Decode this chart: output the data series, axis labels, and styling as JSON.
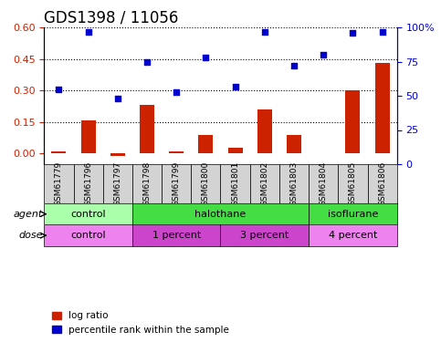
{
  "title": "GDS1398 / 11056",
  "samples": [
    "GSM61779",
    "GSM61796",
    "GSM61797",
    "GSM61798",
    "GSM61799",
    "GSM61800",
    "GSM61801",
    "GSM61802",
    "GSM61803",
    "GSM61804",
    "GSM61805",
    "GSM61806"
  ],
  "log_ratio": [
    0.01,
    0.16,
    -0.01,
    0.23,
    0.01,
    0.09,
    0.03,
    0.21,
    0.09,
    0.0,
    0.3,
    0.43
  ],
  "percentile_rank": [
    55,
    97,
    48,
    75,
    53,
    78,
    57,
    97,
    72,
    80,
    96,
    97
  ],
  "agent_groups": [
    {
      "label": "control",
      "start": 0,
      "end": 3,
      "color": "#90EE90"
    },
    {
      "label": "halothane",
      "start": 3,
      "end": 9,
      "color": "#00CC44"
    },
    {
      "label": "isoflurane",
      "start": 9,
      "end": 12,
      "color": "#00CC44"
    }
  ],
  "dose_groups": [
    {
      "label": "control",
      "start": 0,
      "end": 3,
      "color": "#EE82EE"
    },
    {
      "label": "1 percent",
      "start": 3,
      "end": 6,
      "color": "#DA70D6"
    },
    {
      "label": "3 percent",
      "start": 6,
      "end": 9,
      "color": "#DA70D6"
    },
    {
      "label": "4 percent",
      "start": 9,
      "end": 12,
      "color": "#EE82EE"
    }
  ],
  "left_ylim": [
    -0.05,
    0.6
  ],
  "right_ylim": [
    0,
    100
  ],
  "left_yticks": [
    0,
    0.15,
    0.3,
    0.45,
    0.6
  ],
  "right_yticks": [
    0,
    25,
    50,
    75,
    100
  ],
  "bar_color": "#CC2200",
  "dot_color": "#0000CC",
  "bar_width": 0.5,
  "legend_bar_label": "log ratio",
  "legend_dot_label": "percentile rank within the sample",
  "agent_label": "agent",
  "dose_label": "dose",
  "title_fontsize": 12,
  "label_fontsize": 9,
  "tick_fontsize": 8
}
